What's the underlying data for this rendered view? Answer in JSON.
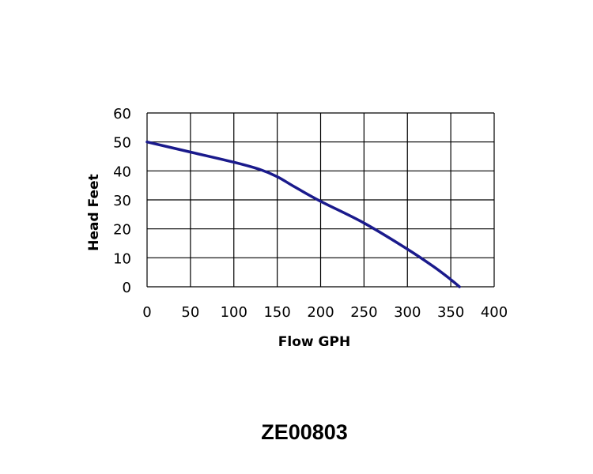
{
  "chart_data": {
    "type": "line",
    "title": "",
    "xlabel": "Flow GPH",
    "ylabel": "Head Feet",
    "xlim": [
      0,
      400
    ],
    "ylim": [
      0,
      60
    ],
    "x_ticks": [
      0,
      50,
      100,
      150,
      200,
      250,
      300,
      350,
      400
    ],
    "y_ticks": [
      0,
      10,
      20,
      30,
      40,
      50,
      60
    ],
    "grid": true,
    "series": [
      {
        "name": "ZE00803",
        "color": "#1a1a8c",
        "x": [
          0,
          50,
          100,
          130,
          150,
          170,
          200,
          250,
          300,
          330,
          350,
          360
        ],
        "y": [
          50,
          46.5,
          43,
          40.5,
          38,
          34.5,
          29.5,
          22,
          13,
          7,
          2.5,
          0
        ]
      }
    ]
  },
  "model": {
    "label": "ZE00803"
  }
}
